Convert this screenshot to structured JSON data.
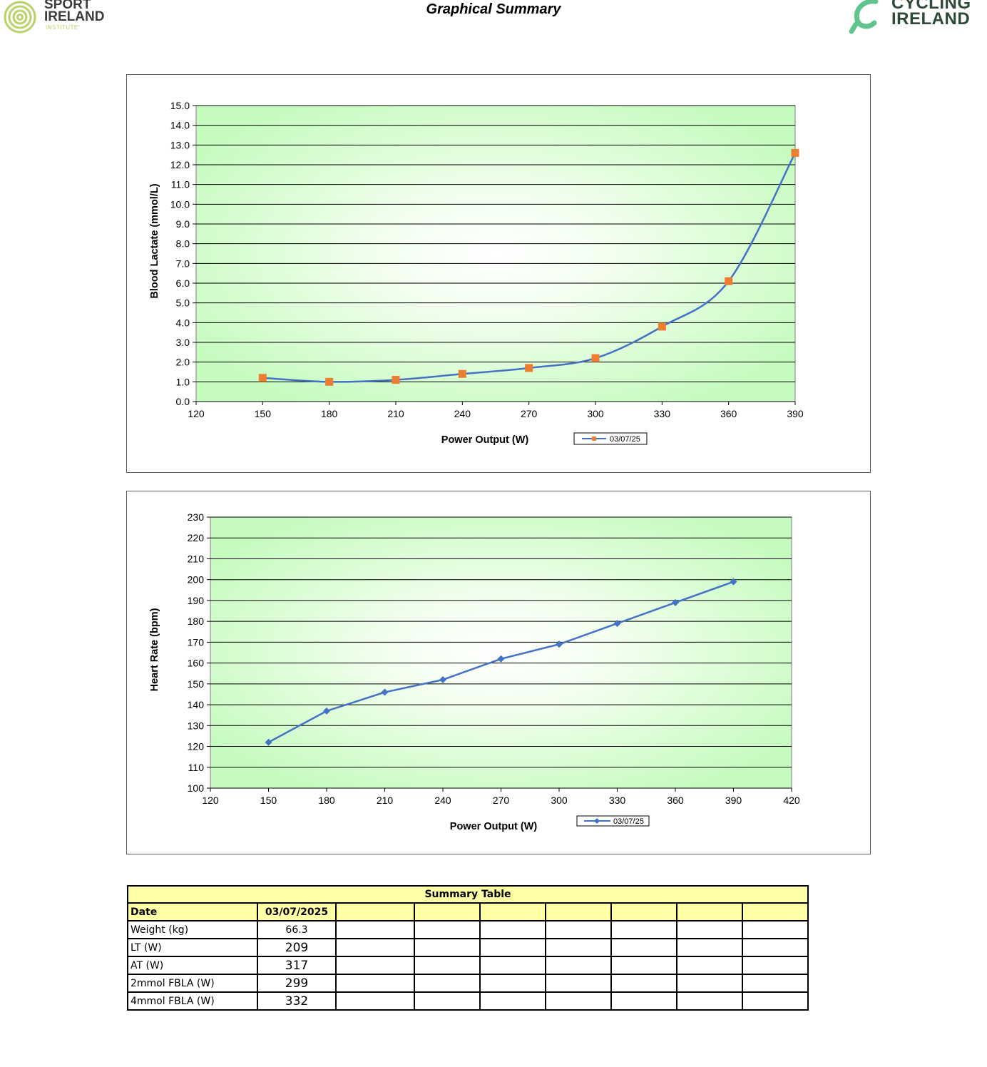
{
  "header": {
    "title": "Graphical Summary",
    "left_logo": {
      "line1": "SPORT",
      "line2": "IRELAND",
      "line3": "INSTITUTE"
    },
    "right_logo": {
      "line1": "CYCLING",
      "line2": "IRELAND"
    }
  },
  "chart_data": [
    {
      "type": "line",
      "xlabel": "Power Output (W)",
      "ylabel": "Blood Lactate (mmol/L)",
      "xlim": [
        120,
        390
      ],
      "ylim": [
        0,
        15
      ],
      "xticks": [
        "120",
        "150",
        "180",
        "210",
        "240",
        "270",
        "300",
        "330",
        "360",
        "390"
      ],
      "yticks": [
        "0.0",
        "1.0",
        "2.0",
        "3.0",
        "4.0",
        "5.0",
        "6.0",
        "7.0",
        "8.0",
        "9.0",
        "10.0",
        "11.0",
        "12.0",
        "13.0",
        "14.0",
        "15.0"
      ],
      "grid": true,
      "legend_placement": "bottom",
      "series": [
        {
          "name": "03/07/25",
          "x": [
            150,
            180,
            210,
            240,
            270,
            300,
            330,
            360,
            390
          ],
          "y": [
            1.2,
            1.0,
            1.1,
            1.4,
            1.7,
            2.2,
            3.8,
            6.1,
            12.6
          ],
          "line_color": "#4472c4",
          "marker": "square",
          "marker_color": "#ed7d31"
        }
      ]
    },
    {
      "type": "line",
      "xlabel": "Power Output (W)",
      "ylabel": "Heart Rate (bpm)",
      "xlim": [
        120,
        420
      ],
      "ylim": [
        100,
        230
      ],
      "xticks": [
        "120",
        "150",
        "180",
        "210",
        "240",
        "270",
        "300",
        "330",
        "360",
        "390",
        "420"
      ],
      "yticks": [
        "100",
        "110",
        "120",
        "130",
        "140",
        "150",
        "160",
        "170",
        "180",
        "190",
        "200",
        "210",
        "220",
        "230"
      ],
      "grid": true,
      "legend_placement": "bottom",
      "series": [
        {
          "name": "03/07/25",
          "x": [
            150,
            180,
            210,
            240,
            270,
            300,
            330,
            360,
            390
          ],
          "y": [
            122,
            137,
            146,
            152,
            162,
            169,
            179,
            189,
            199
          ],
          "line_color": "#4472c4",
          "marker": "diamond",
          "marker_color": "#4472c4"
        }
      ]
    }
  ],
  "summary_table": {
    "title": "Summary Table",
    "header_label": "Date",
    "header_value": "03/07/2025",
    "rows": [
      {
        "label": "Weight (kg)",
        "value": "66.3"
      },
      {
        "label": "LT (W)",
        "value": "209"
      },
      {
        "label": "AT (W)",
        "value": "317"
      },
      {
        "label": "2mmol FBLA (W)",
        "value": "299"
      },
      {
        "label": "4mmol FBLA (W)",
        "value": "332"
      }
    ]
  }
}
